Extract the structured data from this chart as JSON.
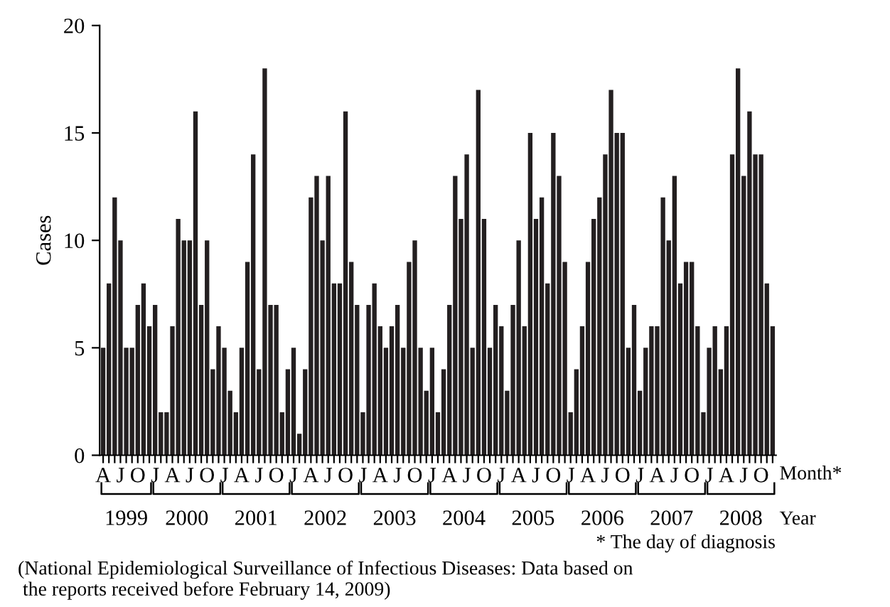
{
  "chart_data": {
    "type": "bar",
    "ylabel": "Cases",
    "xlabel": "Month*",
    "categories": [
      "A",
      null,
      null,
      "J",
      null,
      null,
      "O",
      null,
      null,
      "J",
      null,
      null,
      "A",
      null,
      null,
      "J",
      null,
      null,
      "O",
      null,
      null,
      "J",
      null,
      null,
      "A",
      null,
      null,
      "J",
      null,
      null,
      "O",
      null,
      null,
      "J",
      null,
      null,
      "A",
      null,
      null,
      "J",
      null,
      null,
      "O",
      null,
      null,
      "J",
      null,
      null,
      "A",
      null,
      null,
      "J",
      null,
      null,
      "O",
      null,
      null,
      "J",
      null,
      null,
      "A",
      null,
      null,
      "J",
      null,
      null,
      "O",
      null,
      null,
      "J",
      null,
      null,
      "A",
      null,
      null,
      "J",
      null,
      null,
      "O",
      null,
      null,
      "J",
      null,
      null,
      "A",
      null,
      null,
      "J",
      null,
      null,
      "O",
      null,
      null,
      "J",
      null,
      null,
      "A",
      null,
      null,
      "J",
      null,
      null,
      "O",
      null,
      null,
      "J",
      null,
      null,
      "A",
      null,
      null,
      "J",
      null,
      null,
      "O",
      null,
      null
    ],
    "values": [
      5,
      8,
      12,
      10,
      5,
      5,
      7,
      8,
      6,
      7,
      2,
      2,
      6,
      11,
      10,
      10,
      16,
      7,
      10,
      4,
      6,
      5,
      3,
      2,
      5,
      9,
      14,
      4,
      18,
      7,
      7,
      2,
      4,
      5,
      1,
      4,
      12,
      13,
      10,
      13,
      8,
      8,
      16,
      9,
      7,
      2,
      7,
      8,
      6,
      5,
      6,
      7,
      5,
      9,
      10,
      5,
      3,
      5,
      2,
      4,
      7,
      13,
      11,
      14,
      5,
      17,
      11,
      5,
      7,
      6,
      3,
      7,
      10,
      6,
      15,
      11,
      12,
      8,
      15,
      13,
      9,
      2,
      4,
      6,
      9,
      11,
      12,
      14,
      17,
      15,
      15,
      5,
      7,
      3,
      5,
      6,
      6,
      12,
      10,
      13,
      8,
      9,
      9,
      6,
      2,
      5,
      6,
      4,
      6,
      14,
      18,
      13,
      16,
      14,
      14,
      8,
      6
    ],
    "color": "#231f20",
    "ylim": [
      0,
      20
    ],
    "yticks": [
      0,
      5,
      10,
      15,
      20
    ],
    "grid": false,
    "legend": false,
    "annotations": [
      "1999",
      "2000",
      "2001",
      "2002",
      "2003",
      "2004",
      "2005",
      "2006",
      "2007",
      "2008",
      "Year",
      "* The day of diagnosis",
      "(National Epidemiological Surveillance of Infectious Diseases: Data based on\n the reports received before February 14, 2009)"
    ]
  }
}
